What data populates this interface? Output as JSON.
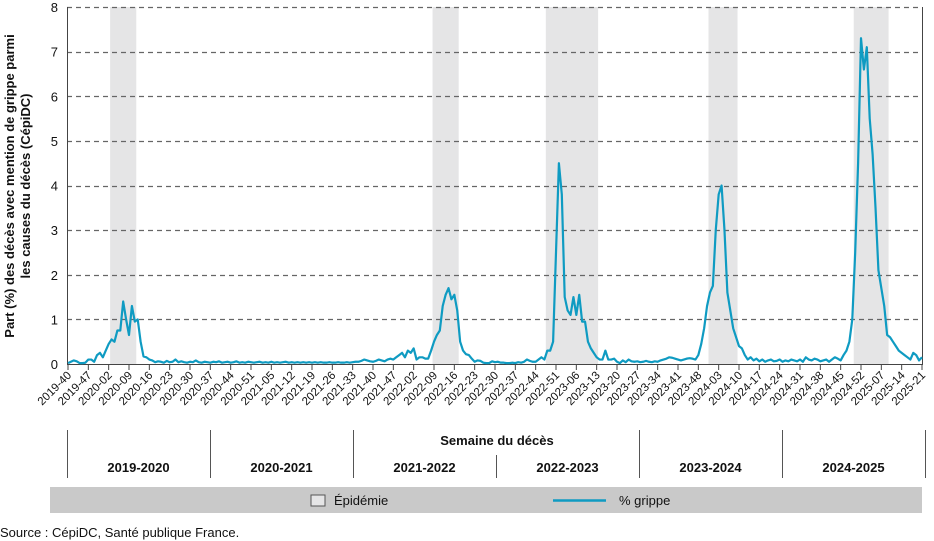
{
  "chart_data": {
    "type": "line",
    "ylabel_line1": "Part (%) des décès avec mention de grippe parmi",
    "ylabel_line2": "les causes du décès (CépiDC)",
    "xlabel": "Semaine du décès",
    "ylim": [
      0,
      8
    ],
    "yticks": [
      "0",
      "1",
      "2",
      "3",
      "4",
      "5",
      "6",
      "7",
      "8"
    ],
    "grid": "horizontal dashed",
    "start_week": "2019-40",
    "xtick_step_weeks": 7,
    "xticks": [
      "2019-40",
      "2019-47",
      "2020-02",
      "2020-09",
      "2020-16",
      "2020-23",
      "2020-30",
      "2020-37",
      "2020-44",
      "2020-51",
      "2021-05",
      "2021-12",
      "2021-19",
      "2021-26",
      "2021-33",
      "2021-40",
      "2021-47",
      "2022-02",
      "2022-09",
      "2022-16",
      "2022-23",
      "2022-30",
      "2022-37",
      "2022-44",
      "2022-51",
      "2023-06",
      "2023-13",
      "2023-20",
      "2023-27",
      "2023-34",
      "2023-41",
      "2023-48",
      "2024-03",
      "2024-10",
      "2024-17",
      "2024-24",
      "2024-31",
      "2024-38",
      "2024-45",
      "2024-52",
      "2025-07",
      "2025-14",
      "2025-21"
    ],
    "seasons": [
      "2019-2020",
      "2020-2021",
      "2021-2022",
      "2022-2023",
      "2023-2024",
      "2024-2025"
    ],
    "series": [
      {
        "name": "% grippe",
        "color": "#0f9bc2",
        "values": [
          0.02,
          0.05,
          0.08,
          0.06,
          0.02,
          0.02,
          0.03,
          0.1,
          0.1,
          0.05,
          0.2,
          0.25,
          0.15,
          0.3,
          0.45,
          0.55,
          0.5,
          0.75,
          0.75,
          1.4,
          1.0,
          0.65,
          1.3,
          0.95,
          1.0,
          0.5,
          0.17,
          0.15,
          0.1,
          0.08,
          0.04,
          0.06,
          0.05,
          0.03,
          0.07,
          0.04,
          0.05,
          0.1,
          0.04,
          0.06,
          0.04,
          0.03,
          0.05,
          0.04,
          0.08,
          0.04,
          0.03,
          0.05,
          0.04,
          0.03,
          0.05,
          0.04,
          0.06,
          0.03,
          0.04,
          0.05,
          0.03,
          0.04,
          0.06,
          0.03,
          0.04,
          0.03,
          0.05,
          0.04,
          0.03,
          0.04,
          0.05,
          0.03,
          0.04,
          0.03,
          0.05,
          0.03,
          0.04,
          0.03,
          0.04,
          0.05,
          0.03,
          0.04,
          0.03,
          0.04,
          0.03,
          0.04,
          0.03,
          0.04,
          0.03,
          0.04,
          0.03,
          0.04,
          0.03,
          0.03,
          0.04,
          0.03,
          0.03,
          0.04,
          0.03,
          0.03,
          0.04,
          0.03,
          0.04,
          0.05,
          0.05,
          0.07,
          0.1,
          0.08,
          0.06,
          0.05,
          0.07,
          0.1,
          0.08,
          0.06,
          0.1,
          0.12,
          0.1,
          0.15,
          0.2,
          0.25,
          0.15,
          0.3,
          0.25,
          0.35,
          0.1,
          0.15,
          0.15,
          0.12,
          0.12,
          0.3,
          0.5,
          0.65,
          0.75,
          1.3,
          1.55,
          1.7,
          1.45,
          1.55,
          1.2,
          0.5,
          0.3,
          0.22,
          0.2,
          0.12,
          0.05,
          0.08,
          0.07,
          0.03,
          0.02,
          0.02,
          0.06,
          0.04,
          0.05,
          0.03,
          0.03,
          0.02,
          0.02,
          0.03,
          0.02,
          0.04,
          0.03,
          0.05,
          0.1,
          0.07,
          0.05,
          0.05,
          0.1,
          0.15,
          0.1,
          0.3,
          0.3,
          0.5,
          2.5,
          4.5,
          3.8,
          1.5,
          1.2,
          1.1,
          1.5,
          1.1,
          1.55,
          0.95,
          0.95,
          0.5,
          0.35,
          0.25,
          0.15,
          0.1,
          0.1,
          0.3,
          0.1,
          0.1,
          0.12,
          0.05,
          0.02,
          0.08,
          0.04,
          0.1,
          0.06,
          0.05,
          0.06,
          0.04,
          0.05,
          0.07,
          0.05,
          0.04,
          0.06,
          0.05,
          0.08,
          0.1,
          0.12,
          0.15,
          0.14,
          0.12,
          0.1,
          0.08,
          0.1,
          0.12,
          0.13,
          0.12,
          0.1,
          0.2,
          0.45,
          0.8,
          1.3,
          1.6,
          1.75,
          3.0,
          3.8,
          4.0,
          3.0,
          1.6,
          1.2,
          0.8,
          0.6,
          0.4,
          0.35,
          0.2,
          0.1,
          0.15,
          0.08,
          0.12,
          0.06,
          0.1,
          0.05,
          0.08,
          0.1,
          0.06,
          0.07,
          0.1,
          0.05,
          0.08,
          0.06,
          0.1,
          0.08,
          0.06,
          0.1,
          0.05,
          0.15,
          0.1,
          0.08,
          0.12,
          0.1,
          0.06,
          0.08,
          0.1,
          0.05,
          0.1,
          0.15,
          0.12,
          0.08,
          0.2,
          0.3,
          0.5,
          1.0,
          2.5,
          4.5,
          7.3,
          6.6,
          7.1,
          5.5,
          4.7,
          3.5,
          2.1,
          1.7,
          1.3,
          0.65,
          0.6,
          0.5,
          0.4,
          0.3,
          0.25,
          0.2,
          0.15,
          0.1,
          0.25,
          0.2,
          0.08,
          0.15
        ]
      }
    ],
    "epidemic_periods": [
      {
        "start": "2020-03",
        "end": "2020-11"
      },
      {
        "start": "2022-09",
        "end": "2022-17"
      },
      {
        "start": "2022-48",
        "end": "2023-13"
      },
      {
        "start": "2023-52",
        "end": "2024-09"
      },
      {
        "start": "2024-50",
        "end": "2025-09"
      }
    ],
    "epidemic_color": "#e5e5e6",
    "legend": {
      "placement": "bottom",
      "epidemic_label": "Épidémie",
      "line_label": "% grippe",
      "band_color": "#c9c9c9"
    },
    "source": "Source : CépiDC, Santé publique France."
  }
}
